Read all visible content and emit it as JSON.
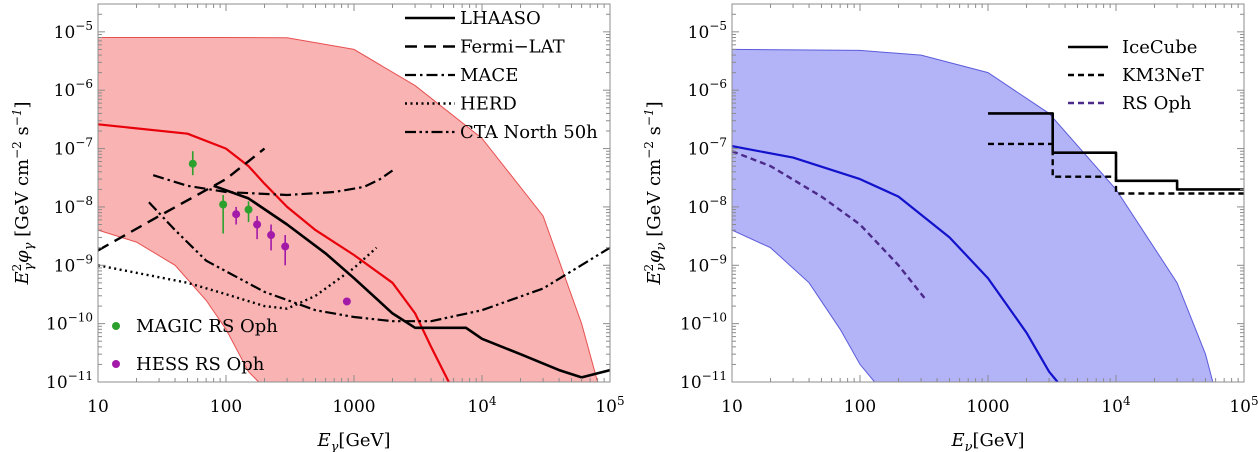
{
  "chart_data": [
    {
      "type": "line",
      "title": "",
      "xlabel": "E_γ [GeV]",
      "ylabel": "E_γ² φ_γ [GeV cm⁻² s⁻¹]",
      "x_scale": "log",
      "y_scale": "log",
      "xlim": [
        10,
        100000
      ],
      "ylim": [
        1e-11,
        3e-05
      ],
      "x_ticks": [
        {
          "value": 10,
          "label": "10"
        },
        {
          "value": 100,
          "label": "100"
        },
        {
          "value": 1000,
          "label": "1000"
        },
        {
          "value": 10000,
          "base": "10",
          "exp": "4"
        },
        {
          "value": 100000,
          "base": "10",
          "exp": "5"
        }
      ],
      "y_ticks": [
        {
          "value": 1e-11,
          "base": "10",
          "exp": "−11"
        },
        {
          "value": 1e-10,
          "base": "10",
          "exp": "−10"
        },
        {
          "value": 1e-09,
          "base": "10",
          "exp": "−9"
        },
        {
          "value": 1e-08,
          "base": "10",
          "exp": "−8"
        },
        {
          "value": 1e-07,
          "base": "10",
          "exp": "−7"
        },
        {
          "value": 1e-06,
          "base": "10",
          "exp": "−6"
        },
        {
          "value": 1e-05,
          "base": "10",
          "exp": "−5"
        }
      ],
      "band": {
        "color": "#f9b3b3",
        "edge": "#e85050",
        "upper": [
          [
            10,
            8e-06
          ],
          [
            100,
            8e-06
          ],
          [
            300,
            7.9e-06
          ],
          [
            1000,
            5e-06
          ],
          [
            3000,
            1.2e-06
          ],
          [
            10000,
            1.5e-07
          ],
          [
            30000,
            7e-09
          ],
          [
            60000,
            1e-10
          ],
          [
            80000,
            1e-11
          ]
        ],
        "lower": [
          [
            10,
            4e-09
          ],
          [
            20,
            2.5e-09
          ],
          [
            40,
            1e-09
          ],
          [
            70,
            2.5e-10
          ],
          [
            100,
            8e-11
          ],
          [
            150,
            1.5e-11
          ],
          [
            180,
            1e-11
          ]
        ]
      },
      "series": [
        {
          "name": "Model (red)",
          "color": "#e8000b",
          "dash": "solid",
          "width": 2.2,
          "legend": false,
          "points": [
            [
              10,
              2.6e-07
            ],
            [
              50,
              1.8e-07
            ],
            [
              100,
              1e-07
            ],
            [
              150,
              5e-08
            ],
            [
              200,
              2.5e-08
            ],
            [
              300,
              1e-08
            ],
            [
              500,
              4e-09
            ],
            [
              1000,
              1.5e-09
            ],
            [
              2000,
              5e-10
            ],
            [
              3000,
              1.5e-10
            ],
            [
              4000,
              4e-11
            ],
            [
              5500,
              1e-11
            ]
          ]
        },
        {
          "name": "LHAASO",
          "color": "#000000",
          "dash": "solid",
          "width": 2.6,
          "points": [
            [
              80,
              2.3e-08
            ],
            [
              150,
              1.4e-08
            ],
            [
              300,
              5e-09
            ],
            [
              600,
              1.6e-09
            ],
            [
              1000,
              6e-10
            ],
            [
              2000,
              1.5e-10
            ],
            [
              3000,
              8.5e-11
            ],
            [
              7500,
              8.5e-11
            ],
            [
              10000,
              5.5e-11
            ],
            [
              20000,
              3e-11
            ],
            [
              40000,
              1.6e-11
            ],
            [
              60000,
              1.2e-11
            ],
            [
              100000,
              1.6e-11
            ]
          ]
        },
        {
          "name": "Fermi−LAT",
          "color": "#000000",
          "dash": "12 7",
          "width": 2.4,
          "points": [
            [
              10,
              1.8e-09
            ],
            [
              30,
              7e-09
            ],
            [
              100,
              3e-08
            ],
            [
              200,
              1e-07
            ]
          ]
        },
        {
          "name": "MACE",
          "color": "#000000",
          "dash": "11 4 2.5 4",
          "width": 2.2,
          "points": [
            [
              27,
              3.5e-08
            ],
            [
              50,
              2.3e-08
            ],
            [
              100,
              1.8e-08
            ],
            [
              300,
              1.6e-08
            ],
            [
              700,
              1.8e-08
            ],
            [
              1200,
              2.2e-08
            ],
            [
              1600,
              3e-08
            ],
            [
              2000,
              4.2e-08
            ]
          ]
        },
        {
          "name": "HERD",
          "color": "#000000",
          "dash": "2 3.5",
          "width": 2.4,
          "points": [
            [
              10,
              1e-09
            ],
            [
              50,
              5e-10
            ],
            [
              100,
              3.2e-10
            ],
            [
              200,
              2e-10
            ],
            [
              300,
              1.8e-10
            ],
            [
              500,
              3e-10
            ],
            [
              1000,
              9e-10
            ],
            [
              1500,
              2e-09
            ]
          ]
        },
        {
          "name": "CTA North 50h",
          "color": "#000000",
          "dash": "11 3.5 2.5 3.5 2.5 3.5",
          "width": 2.2,
          "points": [
            [
              25,
              1.2e-08
            ],
            [
              40,
              4e-09
            ],
            [
              70,
              1.2e-09
            ],
            [
              200,
              3.5e-10
            ],
            [
              500,
              1.7e-10
            ],
            [
              1000,
              1.3e-10
            ],
            [
              2000,
              1.1e-10
            ],
            [
              4000,
              1.1e-10
            ],
            [
              10000,
              1.7e-10
            ],
            [
              30000,
              4e-10
            ],
            [
              100000,
              2e-09
            ]
          ]
        }
      ],
      "points_series": [
        {
          "name": "MAGIC RS Oph",
          "color": "#2ca02c",
          "points": [
            {
              "x": 55,
              "y": 5.5e-08,
              "lo": 3.5e-08,
              "hi": 9e-08
            },
            {
              "x": 95,
              "y": 1.1e-08,
              "lo": 3.5e-09,
              "hi": 1.6e-08
            },
            {
              "x": 150,
              "y": 9e-09,
              "lo": 5.5e-09,
              "hi": 1.25e-08
            }
          ]
        },
        {
          "name": "HESS RS Oph",
          "color": "#a31aa8",
          "points": [
            {
              "x": 120,
              "y": 7.5e-09,
              "lo": 5e-09,
              "hi": 1e-08
            },
            {
              "x": 175,
              "y": 5e-09,
              "lo": 2.8e-09,
              "hi": 7e-09
            },
            {
              "x": 225,
              "y": 3.3e-09,
              "lo": 1.8e-09,
              "hi": 5e-09
            },
            {
              "x": 290,
              "y": 2.1e-09,
              "lo": 1e-09,
              "hi": 3.3e-09
            },
            {
              "x": 880,
              "y": 2.4e-10,
              "lo": 2.4e-10,
              "hi": 2.4e-10
            }
          ]
        }
      ],
      "legend_lines": [
        "LHAASO",
        "Fermi−LAT",
        "MACE",
        "HERD",
        "CTA North 50h"
      ],
      "legend_markers": [
        "MAGIC RS Oph",
        "HESS RS Oph"
      ]
    },
    {
      "type": "line",
      "title": "",
      "xlabel": "E_ν [GeV]",
      "ylabel": "E_ν² φ_ν [GeV cm⁻² s⁻¹]",
      "x_scale": "log",
      "y_scale": "log",
      "xlim": [
        10,
        100000
      ],
      "ylim": [
        1e-11,
        3e-05
      ],
      "x_ticks": [
        {
          "value": 10,
          "label": "10"
        },
        {
          "value": 100,
          "label": "100"
        },
        {
          "value": 1000,
          "label": "1000"
        },
        {
          "value": 10000,
          "base": "10",
          "exp": "4"
        },
        {
          "value": 100000,
          "base": "10",
          "exp": "5"
        }
      ],
      "y_ticks": [
        {
          "value": 1e-11,
          "base": "10",
          "exp": "−11"
        },
        {
          "value": 1e-10,
          "base": "10",
          "exp": "−10"
        },
        {
          "value": 1e-09,
          "base": "10",
          "exp": "−9"
        },
        {
          "value": 1e-08,
          "base": "10",
          "exp": "−8"
        },
        {
          "value": 1e-07,
          "base": "10",
          "exp": "−7"
        },
        {
          "value": 1e-06,
          "base": "10",
          "exp": "−6"
        },
        {
          "value": 1e-05,
          "base": "10",
          "exp": "−5"
        }
      ],
      "band": {
        "color": "#b3b3f7",
        "edge": "#5b5bdc",
        "upper": [
          [
            10,
            5e-06
          ],
          [
            100,
            4.8e-06
          ],
          [
            300,
            4e-06
          ],
          [
            1000,
            2e-06
          ],
          [
            3000,
            4e-07
          ],
          [
            10000,
            2e-08
          ],
          [
            30000,
            5e-10
          ],
          [
            50000,
            3e-11
          ],
          [
            57000,
            1e-11
          ]
        ],
        "lower": [
          [
            10,
            4e-09
          ],
          [
            20,
            2e-09
          ],
          [
            40,
            5e-10
          ],
          [
            70,
            8e-11
          ],
          [
            100,
            2e-11
          ],
          [
            130,
            1e-11
          ]
        ]
      },
      "series": [
        {
          "name": "Model (blue)",
          "color": "#1212cc",
          "dash": "solid",
          "width": 2.2,
          "legend": false,
          "points": [
            [
              10,
              1.1e-07
            ],
            [
              30,
              7e-08
            ],
            [
              100,
              3e-08
            ],
            [
              200,
              1.5e-08
            ],
            [
              500,
              3e-09
            ],
            [
              1000,
              6e-10
            ],
            [
              2000,
              7e-11
            ],
            [
              3000,
              1.5e-11
            ],
            [
              3500,
              1e-11
            ]
          ]
        },
        {
          "name": "RS Oph",
          "color": "#4b2a8a",
          "dash": "6 4",
          "width": 2.4,
          "points": [
            [
              10,
              9e-08
            ],
            [
              20,
              5e-08
            ],
            [
              50,
              1.5e-08
            ],
            [
              100,
              5e-09
            ],
            [
              200,
              1e-09
            ],
            [
              330,
              2.5e-10
            ]
          ]
        },
        {
          "name": "IceCube",
          "color": "#000000",
          "dash": "solid",
          "width": 2.6,
          "points": [
            [
              1000,
              4e-07
            ],
            [
              3200,
              4e-07
            ],
            [
              3200,
              8.5e-08
            ],
            [
              10000,
              8.5e-08
            ],
            [
              10000,
              2.8e-08
            ],
            [
              30000,
              2.8e-08
            ],
            [
              30000,
              2e-08
            ],
            [
              100000,
              2e-08
            ]
          ]
        },
        {
          "name": "KM3NeT",
          "color": "#000000",
          "dash": "6 4",
          "width": 2.4,
          "points": [
            [
              1000,
              1.2e-07
            ],
            [
              3200,
              1.2e-07
            ],
            [
              3200,
              3.3e-08
            ],
            [
              10000,
              3.3e-08
            ],
            [
              10000,
              1.7e-08
            ],
            [
              100000,
              1.7e-08
            ]
          ]
        }
      ],
      "points_series": [],
      "legend_lines": [
        "IceCube",
        "KM3NeT",
        "RS Oph"
      ],
      "legend_markers": []
    }
  ]
}
